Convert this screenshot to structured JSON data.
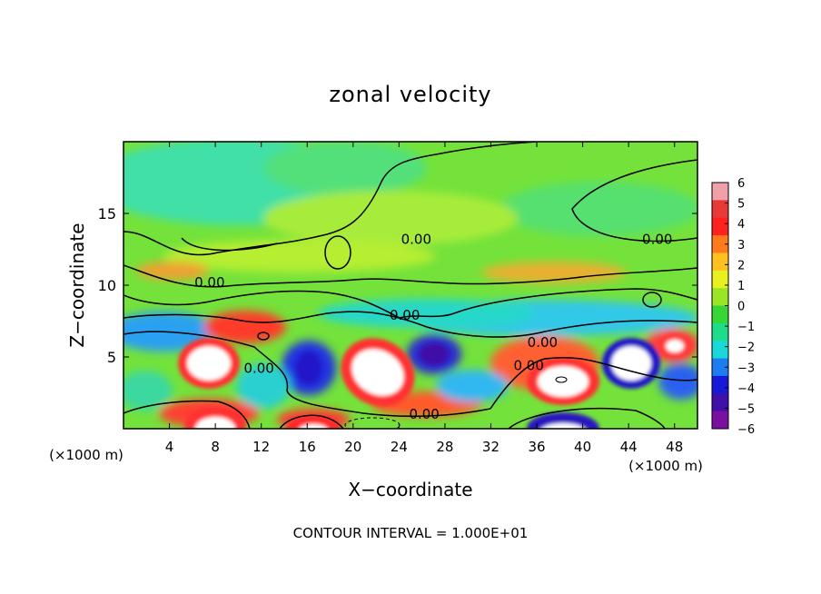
{
  "chart_data": {
    "type": "heatmap",
    "title": "zonal velocity",
    "xlabel": "X−coordinate",
    "ylabel": "Z−coordinate",
    "x_unit_left": "(×1000 m)",
    "x_unit_right": "(×1000 m)",
    "footer": "CONTOUR INTERVAL = 1.000E+01",
    "xlim": [
      0,
      50
    ],
    "ylim": [
      0,
      20
    ],
    "x_ticks": [
      4,
      8,
      12,
      16,
      20,
      24,
      28,
      32,
      36,
      40,
      44,
      48
    ],
    "x_tick_labels": [
      "4",
      "8",
      "12",
      "16",
      "20",
      "24",
      "28",
      "32",
      "36",
      "40",
      "44",
      "48"
    ],
    "y_ticks": [
      5,
      10,
      15
    ],
    "y_tick_labels": [
      "5",
      "10",
      "15"
    ],
    "colorbar": {
      "min": -6,
      "max": 6,
      "ticks": [
        6,
        5,
        4,
        3,
        2,
        1,
        0,
        -1,
        -2,
        -3,
        -4,
        -5,
        -6
      ],
      "tick_labels": [
        "6",
        "5",
        "4",
        "3",
        "2",
        "1",
        "0",
        "−1",
        "−2",
        "−3",
        "−4",
        "−5",
        "−6"
      ],
      "colors": [
        "#f0a0a8",
        "#e83838",
        "#ff2020",
        "#ff7a1a",
        "#ffc020",
        "#e8f020",
        "#9ae626",
        "#36d636",
        "#1fdc8a",
        "#18d8d8",
        "#1c7cf0",
        "#1818d8",
        "#4010a8",
        "#7a10a0"
      ]
    },
    "contour_level": 0,
    "contour_label": "0.00",
    "contour_annotations": [
      {
        "x": 25.5,
        "z": 13.2
      },
      {
        "x": 46.5,
        "z": 13.2
      },
      {
        "x": 7.5,
        "z": 10.2
      },
      {
        "x": 24.5,
        "z": 7.9
      },
      {
        "x": 36.5,
        "z": 6.0
      },
      {
        "x": 11.8,
        "z": 4.2
      },
      {
        "x": 35.3,
        "z": 4.4
      },
      {
        "x": 26.2,
        "z": 1.0
      }
    ],
    "features": [
      {
        "x": 7.5,
        "z": 4.8,
        "value": 6
      },
      {
        "x": 8.3,
        "z": 0.6,
        "value": 6
      },
      {
        "x": 22.5,
        "z": 4.3,
        "value": 6
      },
      {
        "x": 37.0,
        "z": 3.6,
        "value": 6
      },
      {
        "x": 44.3,
        "z": 4.8,
        "value": -6
      },
      {
        "x": 38.2,
        "z": 0.4,
        "value": -6
      },
      {
        "x": 27.5,
        "z": 5.2,
        "value": -5
      },
      {
        "x": 15.8,
        "z": 4.2,
        "value": -4
      },
      {
        "x": 48.0,
        "z": 5.8,
        "value": 5
      },
      {
        "x": 11.0,
        "z": 6.3,
        "value": 4
      },
      {
        "x": 19.0,
        "z": 0.4,
        "value": 6
      },
      {
        "x": 10.0,
        "z": 16.5,
        "value": -1.5
      },
      {
        "x": 30.0,
        "z": 15.0,
        "value": 0.5
      }
    ]
  }
}
